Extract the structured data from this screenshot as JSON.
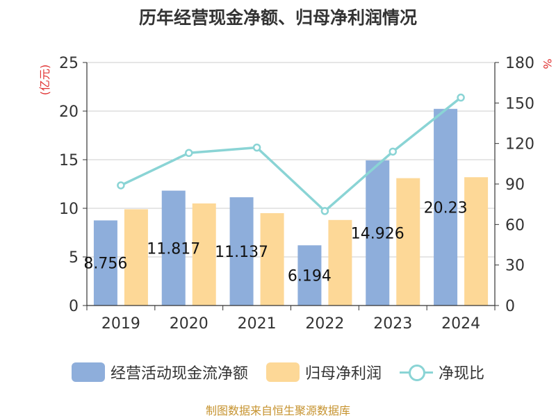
{
  "title": "历年经营现金净额、归母净利润情况",
  "source": "制图数据来自恒生聚源数据库",
  "colors": {
    "cash_flow": "#8eaedb",
    "net_profit": "#fdd897",
    "ratio": "#8ad4d5",
    "axis_unit": "#e03030",
    "source": "#c6932f"
  },
  "legend": [
    "经营活动现金流净额",
    "归母净利润",
    "净现比"
  ],
  "chart_data": {
    "type": "bar",
    "title": "历年经营现金净额、归母净利润情况",
    "categories": [
      "2019",
      "2020",
      "2021",
      "2022",
      "2023",
      "2024"
    ],
    "ylabel": "(亿元)",
    "y2label": "%",
    "ylim": [
      0,
      25
    ],
    "yticks": [
      0,
      5,
      10,
      15,
      20,
      25
    ],
    "y2lim": [
      0,
      180
    ],
    "y2ticks": [
      0,
      30,
      60,
      90,
      120,
      150,
      180
    ],
    "grid": true,
    "legend_position": "bottom",
    "series": [
      {
        "name": "经营活动现金流净额",
        "type": "bar",
        "axis": "left",
        "values": [
          8.756,
          11.817,
          11.137,
          6.194,
          14.926,
          20.23
        ],
        "labels": [
          "8.756",
          "11.817",
          "11.137",
          "6.194",
          "14.926",
          "20.23"
        ]
      },
      {
        "name": "归母净利润",
        "type": "bar",
        "axis": "left",
        "values": [
          9.9,
          10.5,
          9.5,
          8.8,
          13.1,
          13.2
        ]
      },
      {
        "name": "净现比",
        "type": "line",
        "axis": "right",
        "values": [
          89,
          113,
          117,
          70,
          114,
          154
        ]
      }
    ]
  }
}
